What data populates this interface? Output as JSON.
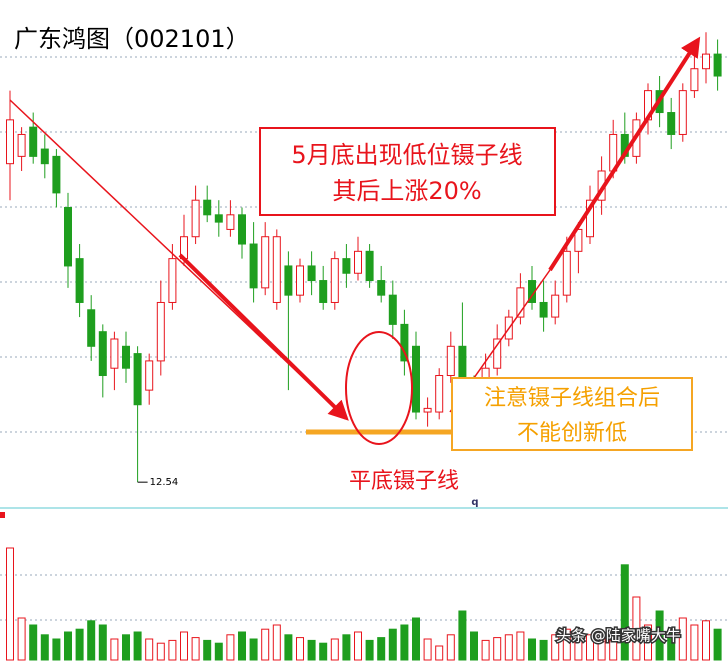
{
  "chart_data": {
    "type": "candlestick",
    "title": "广东鸿图（002101）",
    "annotations": [
      "5月底出现低位镊子线",
      "其后上涨20%",
      "注意镊子线组合后",
      "不能创新低",
      "平底镊子线"
    ],
    "low_annotation": 12.54,
    "corner_mark": "q",
    "watermark": "头条 @陆家嘴大牛",
    "up_color": "#e8141c",
    "down_color": "#1e9e1e",
    "ylim": [
      12.2,
      18.73
    ],
    "open": [
      16.9,
      17.0,
      17.4,
      17.1,
      17.0,
      16.3,
      15.6,
      14.9,
      14.6,
      14.1,
      14.4,
      14.3,
      13.8,
      14.2,
      15.0,
      15.6,
      15.9,
      16.4,
      16.2,
      16.0,
      16.2,
      15.8,
      15.2,
      15.0,
      15.5,
      15.1,
      15.5,
      15.3,
      15.0,
      15.6,
      15.4,
      15.7,
      15.3,
      15.1,
      14.7,
      14.4,
      13.5,
      13.5,
      14.0,
      14.4,
      13.9,
      13.6,
      14.1,
      14.5,
      14.8,
      15.3,
      15.0,
      14.8,
      15.1,
      15.7,
      15.9,
      16.4,
      16.8,
      17.3,
      17.0,
      17.5,
      17.9,
      17.6,
      17.3,
      17.9,
      18.2,
      18.4
    ],
    "high": [
      17.9,
      17.4,
      17.6,
      17.3,
      17.1,
      16.5,
      15.8,
      15.1,
      14.7,
      14.6,
      14.6,
      14.4,
      14.3,
      15.3,
      15.8,
      16.2,
      16.6,
      16.6,
      16.4,
      16.4,
      16.3,
      16.1,
      16.1,
      16.0,
      15.7,
      15.6,
      15.7,
      15.5,
      15.7,
      15.8,
      15.9,
      15.8,
      15.5,
      15.3,
      14.9,
      14.6,
      13.7,
      14.1,
      14.6,
      15.0,
      14.0,
      14.3,
      14.7,
      14.9,
      15.4,
      15.5,
      15.3,
      15.3,
      15.9,
      16.1,
      16.6,
      17.0,
      17.5,
      17.6,
      17.6,
      18.0,
      18.1,
      17.8,
      18.0,
      18.4,
      18.7,
      18.6
    ],
    "low": [
      16.4,
      16.8,
      16.9,
      16.7,
      16.3,
      15.2,
      14.8,
      14.2,
      13.7,
      13.8,
      13.9,
      12.54,
      13.6,
      14.0,
      14.9,
      15.5,
      15.8,
      16.1,
      15.9,
      15.9,
      15.6,
      15.0,
      15.1,
      14.9,
      13.8,
      15.0,
      15.1,
      14.9,
      14.9,
      15.2,
      15.3,
      15.2,
      15.0,
      14.5,
      14.0,
      13.4,
      13.3,
      13.4,
      13.9,
      13.8,
      13.5,
      13.4,
      14.0,
      14.4,
      14.7,
      14.9,
      14.6,
      14.7,
      15.0,
      15.4,
      15.8,
      16.2,
      16.7,
      16.9,
      16.9,
      17.3,
      17.4,
      17.1,
      17.2,
      17.8,
      18.0,
      17.9
    ],
    "close": [
      17.5,
      17.3,
      17.0,
      16.9,
      16.5,
      15.5,
      15.0,
      14.4,
      14.0,
      14.5,
      14.1,
      13.6,
      14.2,
      15.0,
      15.6,
      15.9,
      16.4,
      16.2,
      16.1,
      16.2,
      15.8,
      15.2,
      15.9,
      15.9,
      15.1,
      15.5,
      15.3,
      15.0,
      15.6,
      15.4,
      15.7,
      15.3,
      15.1,
      14.7,
      14.2,
      13.5,
      13.55,
      14.0,
      14.4,
      13.9,
      13.7,
      14.1,
      14.5,
      14.8,
      15.2,
      15.0,
      14.8,
      15.1,
      15.7,
      16.0,
      16.4,
      16.8,
      17.3,
      17.0,
      17.5,
      17.9,
      17.6,
      17.3,
      17.9,
      18.2,
      18.4,
      18.1
    ],
    "volume": [
      80,
      30,
      25,
      18,
      15,
      20,
      22,
      28,
      25,
      15,
      18,
      20,
      15,
      12,
      14,
      20,
      16,
      14,
      12,
      18,
      20,
      15,
      22,
      25,
      18,
      16,
      14,
      12,
      15,
      18,
      20,
      14,
      16,
      22,
      25,
      30,
      15,
      10,
      18,
      35,
      20,
      14,
      16,
      18,
      20,
      15,
      14,
      18,
      22,
      20,
      18,
      16,
      14,
      68,
      45,
      25,
      35,
      20,
      30,
      25,
      28,
      22
    ],
    "volume_ylim": [
      0,
      100
    ]
  }
}
